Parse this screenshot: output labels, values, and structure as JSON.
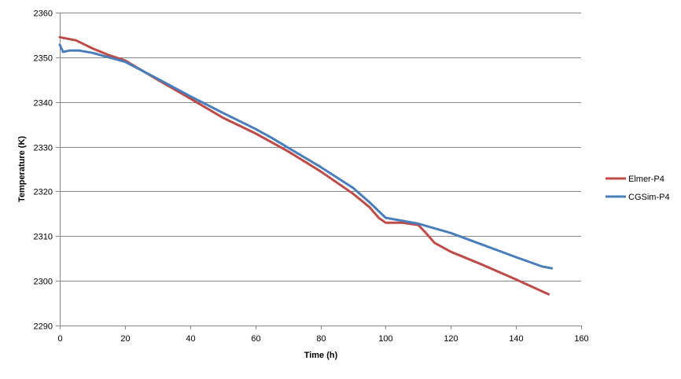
{
  "chart_data": {
    "type": "line",
    "title": "",
    "xlabel": "Time (h)",
    "ylabel": "Temperature (K)",
    "xlim": [
      0,
      160
    ],
    "ylim": [
      2290,
      2360
    ],
    "xticks": [
      0,
      20,
      40,
      60,
      80,
      100,
      120,
      140,
      160
    ],
    "yticks": [
      2290,
      2300,
      2310,
      2320,
      2330,
      2340,
      2350,
      2360
    ],
    "grid": "horizontal",
    "legend_position": "right",
    "series": [
      {
        "name": "Elmer-P4",
        "color": "#be4b48",
        "x": [
          0,
          5,
          10,
          15,
          20,
          30,
          40,
          50,
          60,
          70,
          80,
          90,
          95,
          98,
          100,
          105,
          110,
          112,
          115,
          120,
          130,
          140,
          150
        ],
        "y": [
          2354.5,
          2353.8,
          2352,
          2350.5,
          2349.3,
          2345,
          2340.8,
          2336.5,
          2333,
          2329,
          2324.5,
          2319.5,
          2316.5,
          2314,
          2313,
          2313,
          2312.5,
          2311,
          2308.5,
          2306.5,
          2303.5,
          2300.3,
          2297
        ]
      },
      {
        "name": "CGSim-P4",
        "color": "#4a7ebb",
        "x": [
          0,
          1,
          3,
          6,
          10,
          20,
          30,
          40,
          50,
          60,
          65,
          70,
          80,
          90,
          95,
          98,
          100,
          110,
          120,
          130,
          140,
          148,
          151
        ],
        "y": [
          2352.8,
          2351.2,
          2351.5,
          2351.5,
          2351,
          2349,
          2345.2,
          2341.3,
          2337.6,
          2334,
          2332,
          2329.8,
          2325.5,
          2320.8,
          2317.6,
          2315.5,
          2314.1,
          2312.8,
          2310.7,
          2308,
          2305.3,
          2303.2,
          2302.8
        ]
      }
    ]
  }
}
